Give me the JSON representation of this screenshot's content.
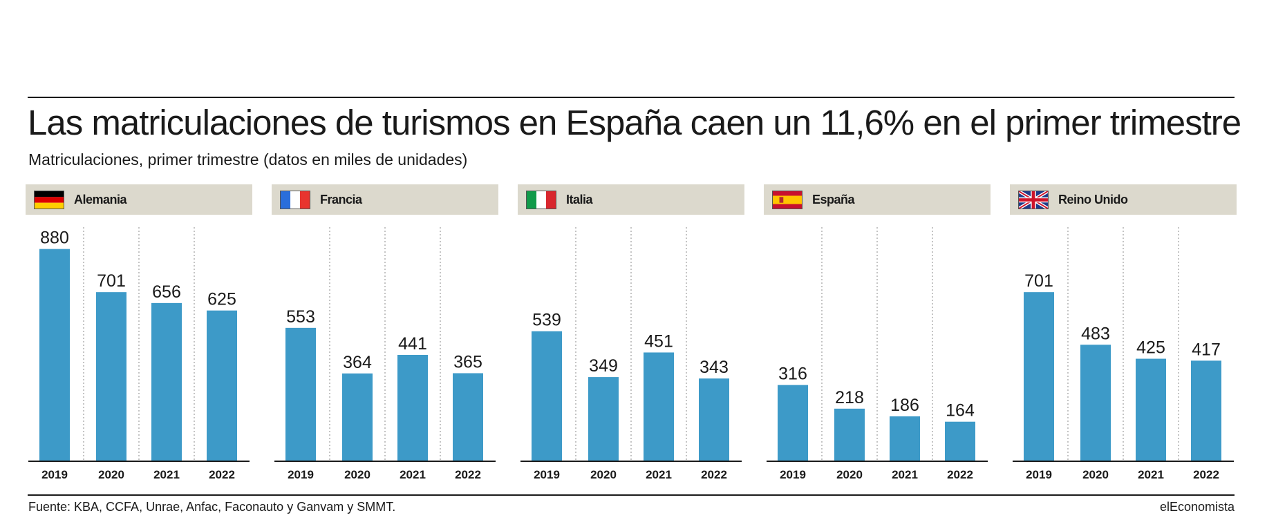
{
  "title": "Las matriculaciones de turismos en España caen un 11,6% en el primer trimestre",
  "subtitle": "Matriculaciones, primer trimestre (datos en miles de unidades)",
  "footer": {
    "source": "Fuente: KBA, CCFA, Unrae, Anfac, Faconauto y Ganvam y SMMT.",
    "brand": "elEconomista"
  },
  "colors": {
    "bar": "#3d9ac8",
    "header_bg": "#dcd9cd",
    "text": "#1a1a1a",
    "gridline": "#8a8a8a"
  },
  "chart_data": [
    {
      "type": "bar",
      "title": "Alemania",
      "flag": "germany-flag-icon",
      "categories": [
        "2019",
        "2020",
        "2021",
        "2022"
      ],
      "values": [
        880,
        701,
        656,
        625
      ],
      "ylim": [
        0,
        900
      ]
    },
    {
      "type": "bar",
      "title": "Francia",
      "flag": "france-flag-icon",
      "categories": [
        "2019",
        "2020",
        "2021",
        "2022"
      ],
      "values": [
        553,
        364,
        441,
        365
      ],
      "ylim": [
        0,
        900
      ]
    },
    {
      "type": "bar",
      "title": "Italia",
      "flag": "italy-flag-icon",
      "categories": [
        "2019",
        "2020",
        "2021",
        "2022"
      ],
      "values": [
        539,
        349,
        451,
        343
      ],
      "ylim": [
        0,
        900
      ]
    },
    {
      "type": "bar",
      "title": "España",
      "flag": "spain-flag-icon",
      "categories": [
        "2019",
        "2020",
        "2021",
        "2022"
      ],
      "values": [
        316,
        218,
        186,
        164
      ],
      "ylim": [
        0,
        900
      ]
    },
    {
      "type": "bar",
      "title": "Reino Unido",
      "flag": "uk-flag-icon",
      "categories": [
        "2019",
        "2020",
        "2021",
        "2022"
      ],
      "values": [
        701,
        483,
        425,
        417
      ],
      "ylim": [
        0,
        900
      ]
    }
  ]
}
